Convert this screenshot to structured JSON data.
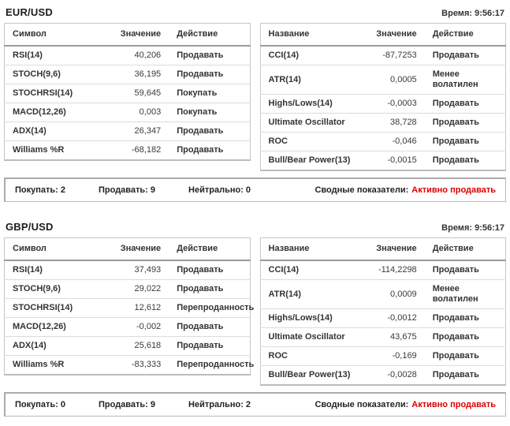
{
  "colors": {
    "sell": "#dd0000",
    "buy": "#00a000",
    "neutral": "#333333"
  },
  "sections": [
    {
      "pair": "EUR/USD",
      "time": "Время: 9:56:17",
      "left_table": {
        "headers": [
          "Символ",
          "Значение",
          "Действие"
        ],
        "rows": [
          {
            "name": "RSI(14)",
            "value": "40,206",
            "action": "Продавать",
            "signal": "sell"
          },
          {
            "name": "STOCH(9,6)",
            "value": "36,195",
            "action": "Продавать",
            "signal": "sell"
          },
          {
            "name": "STOCHRSI(14)",
            "value": "59,645",
            "action": "Покупать",
            "signal": "buy"
          },
          {
            "name": "MACD(12,26)",
            "value": "0,003",
            "action": "Покупать",
            "signal": "buy"
          },
          {
            "name": "ADX(14)",
            "value": "26,347",
            "action": "Продавать",
            "signal": "sell"
          },
          {
            "name": "Williams %R",
            "value": "-68,182",
            "action": "Продавать",
            "signal": "sell"
          }
        ]
      },
      "right_table": {
        "headers": [
          "Название",
          "Значение",
          "Действие"
        ],
        "rows": [
          {
            "name": "CCI(14)",
            "value": "-87,7253",
            "action": "Продавать",
            "signal": "sell"
          },
          {
            "name": "ATR(14)",
            "value": "0,0005",
            "action": "Менее волатилен",
            "signal": "neutral"
          },
          {
            "name": "Highs/Lows(14)",
            "value": "-0,0003",
            "action": "Продавать",
            "signal": "sell"
          },
          {
            "name": "Ultimate Oscillator",
            "value": "38,728",
            "action": "Продавать",
            "signal": "sell"
          },
          {
            "name": "ROC",
            "value": "-0,046",
            "action": "Продавать",
            "signal": "sell"
          },
          {
            "name": "Bull/Bear Power(13)",
            "value": "-0,0015",
            "action": "Продавать",
            "signal": "sell"
          }
        ]
      },
      "summary": {
        "buy": "Покупать: 2",
        "sell": "Продавать: 9",
        "neutral": "Нейтрально: 0",
        "overall_label": "Сводные показатели:",
        "overall_value": "Активно продавать"
      }
    },
    {
      "pair": "GBP/USD",
      "time": "Время: 9:56:17",
      "left_table": {
        "headers": [
          "Символ",
          "Значение",
          "Действие"
        ],
        "rows": [
          {
            "name": "RSI(14)",
            "value": "37,493",
            "action": "Продавать",
            "signal": "sell"
          },
          {
            "name": "STOCH(9,6)",
            "value": "29,022",
            "action": "Продавать",
            "signal": "sell"
          },
          {
            "name": "STOCHRSI(14)",
            "value": "12,612",
            "action": "Перепроданность",
            "signal": "neutral"
          },
          {
            "name": "MACD(12,26)",
            "value": "-0,002",
            "action": "Продавать",
            "signal": "sell"
          },
          {
            "name": "ADX(14)",
            "value": "25,618",
            "action": "Продавать",
            "signal": "sell"
          },
          {
            "name": "Williams %R",
            "value": "-83,333",
            "action": "Перепроданность",
            "signal": "neutral"
          }
        ]
      },
      "right_table": {
        "headers": [
          "Название",
          "Значение",
          "Действие"
        ],
        "rows": [
          {
            "name": "CCI(14)",
            "value": "-114,2298",
            "action": "Продавать",
            "signal": "sell"
          },
          {
            "name": "ATR(14)",
            "value": "0,0009",
            "action": "Менее волатилен",
            "signal": "neutral"
          },
          {
            "name": "Highs/Lows(14)",
            "value": "-0,0012",
            "action": "Продавать",
            "signal": "sell"
          },
          {
            "name": "Ultimate Oscillator",
            "value": "43,675",
            "action": "Продавать",
            "signal": "sell"
          },
          {
            "name": "ROC",
            "value": "-0,169",
            "action": "Продавать",
            "signal": "sell"
          },
          {
            "name": "Bull/Bear Power(13)",
            "value": "-0,0028",
            "action": "Продавать",
            "signal": "sell"
          }
        ]
      },
      "summary": {
        "buy": "Покупать: 0",
        "sell": "Продавать: 9",
        "neutral": "Нейтрально: 2",
        "overall_label": "Сводные показатели:",
        "overall_value": "Активно продавать"
      }
    }
  ]
}
